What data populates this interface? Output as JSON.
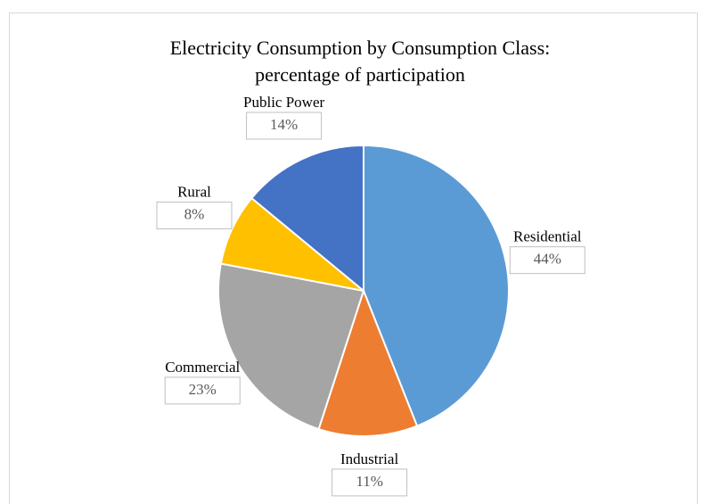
{
  "chart_data": {
    "type": "pie",
    "title": [
      "Electricity Consumption by Consumption Class:",
      "percentage of participation"
    ],
    "categories": [
      "Residential",
      "Industrial",
      "Commercial",
      "Rural",
      "Public Power"
    ],
    "values": [
      44,
      11,
      23,
      8,
      14
    ],
    "value_labels": [
      "44%",
      "11%",
      "23%",
      "8%",
      "14%"
    ],
    "colors": [
      "#5b9bd5",
      "#ed7d31",
      "#a5a5a5",
      "#ffc000",
      "#4472c4"
    ]
  }
}
